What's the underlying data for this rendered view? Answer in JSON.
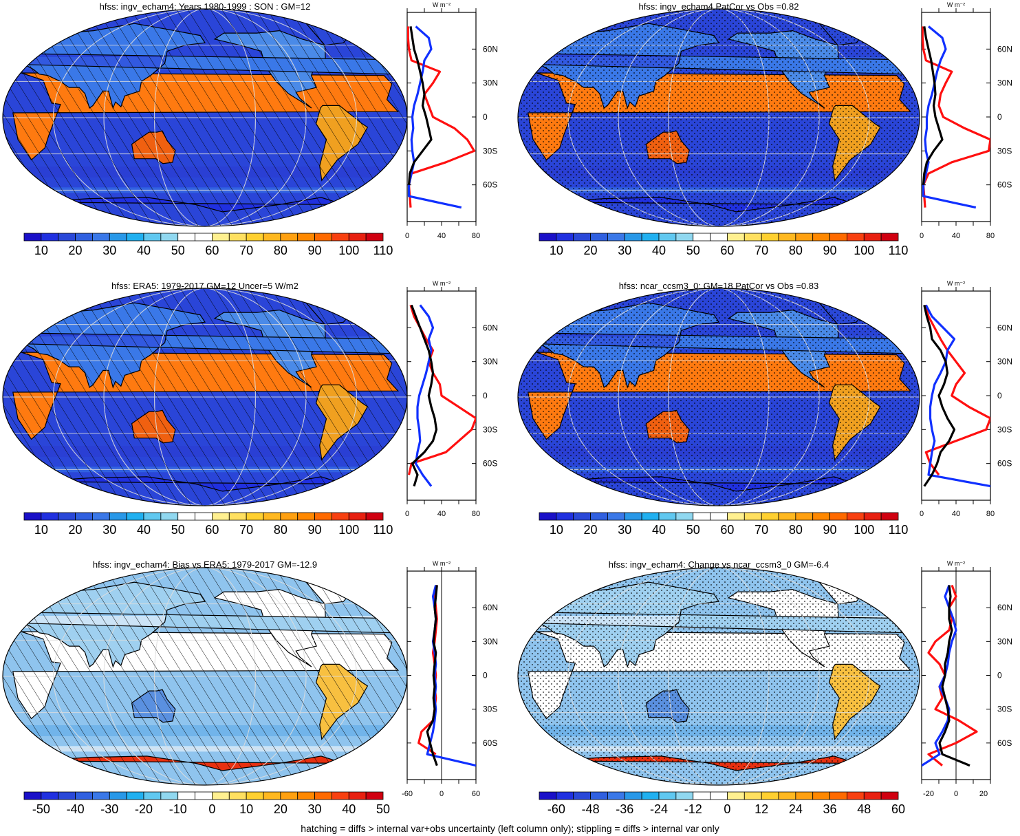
{
  "panels": [
    {
      "title": "hfss: ingv_echam4: Years 1980-1999 : SON : GM=12",
      "colorbar_labels": [
        "10",
        "20",
        "30",
        "40",
        "50",
        "60",
        "70",
        "80",
        "90",
        "100",
        "110"
      ],
      "palette": "full",
      "profile_xticks": [
        "0",
        "40",
        "80"
      ],
      "profile_xrange": [
        0,
        80
      ],
      "profile_unit": "W m⁻²",
      "lat_labels": [
        "60N",
        "30N",
        "0",
        "30S",
        "60S"
      ],
      "overlay": "hatch"
    },
    {
      "title": "hfss: ingv_echam4 PatCor vs Obs =0.82",
      "colorbar_labels": [
        "10",
        "20",
        "30",
        "40",
        "50",
        "60",
        "70",
        "80",
        "90",
        "100",
        "110"
      ],
      "palette": "full",
      "profile_xticks": [
        "0",
        "40",
        "80"
      ],
      "profile_xrange": [
        0,
        80
      ],
      "profile_unit": "W m⁻²",
      "lat_labels": [
        "60N",
        "30N",
        "0",
        "30S",
        "60S"
      ],
      "overlay": "stipple"
    },
    {
      "title": "hfss: ERA5: 1979-2017 GM=12 Uncer=5 W/m2",
      "colorbar_labels": [
        "10",
        "20",
        "30",
        "40",
        "50",
        "60",
        "70",
        "80",
        "90",
        "100",
        "110"
      ],
      "palette": "full",
      "profile_xticks": [
        "0",
        "40",
        "80"
      ],
      "profile_xrange": [
        0,
        80
      ],
      "profile_unit": "W m⁻²",
      "lat_labels": [
        "60N",
        "30N",
        "0",
        "30S",
        "60S"
      ],
      "overlay": "hatch"
    },
    {
      "title": "hfss: ncar_ccsm3_0: GM=18 PatCor vs Obs =0.83",
      "colorbar_labels": [
        "10",
        "20",
        "30",
        "40",
        "50",
        "60",
        "70",
        "80",
        "90",
        "100",
        "110"
      ],
      "palette": "full",
      "profile_xticks": [
        "0",
        "40",
        "80"
      ],
      "profile_xrange": [
        0,
        80
      ],
      "profile_unit": "W m⁻²",
      "lat_labels": [
        "60N",
        "30N",
        "0",
        "30S",
        "60S"
      ],
      "overlay": "stipple"
    },
    {
      "title": "hfss: ingv_echam4: Bias vs ERA5: 1979-2017  GM=-12.9",
      "colorbar_labels": [
        "-50",
        "-40",
        "-30",
        "-20",
        "-10",
        "0",
        "10",
        "20",
        "30",
        "40",
        "50"
      ],
      "palette": "diff",
      "profile_xticks": [
        "-60",
        "0",
        "60"
      ],
      "profile_xrange": [
        -60,
        60
      ],
      "profile_unit": "W m⁻²",
      "lat_labels": [
        "60N",
        "30N",
        "0",
        "30S",
        "60S"
      ],
      "overlay": "hatch"
    },
    {
      "title": "hfss: ingv_echam4: Change vs ncar_ccsm3_0 GM=-6.4",
      "colorbar_labels": [
        "-60",
        "-48",
        "-36",
        "-24",
        "-12",
        "0",
        "12",
        "24",
        "36",
        "48",
        "60"
      ],
      "palette": "diff",
      "profile_xticks": [
        "-20",
        "0",
        "20"
      ],
      "profile_xrange": [
        -25,
        25
      ],
      "profile_unit": "W m⁻²",
      "lat_labels": [
        "60N",
        "30N",
        "0",
        "30S",
        "60S"
      ],
      "overlay": "stipple"
    }
  ],
  "colors": {
    "ocean_mean": "#2a45d8",
    "ocean_diff": "#8fc4ee",
    "red_line": "#ff1010",
    "blue_line": "#1030ff",
    "black_line": "#000000",
    "palette_full": [
      "#1a10c8",
      "#2030e0",
      "#2a48d8",
      "#3060e0",
      "#3a78e8",
      "#2898e8",
      "#20b0f0",
      "#60c8f0",
      "#90d8f0",
      "#ffffff",
      "#ffffff",
      "#fff090",
      "#ffe060",
      "#ffd030",
      "#ffb820",
      "#ffa010",
      "#ff8800",
      "#ff6a00",
      "#f84010",
      "#e82010",
      "#d00010"
    ],
    "palette_diff": [
      "#1a10c8",
      "#2030e0",
      "#2a48d8",
      "#3060e0",
      "#3a78e8",
      "#2898e8",
      "#20b0f0",
      "#60c8f0",
      "#90d8f0",
      "#ffffff",
      "#ffffff",
      "#fff090",
      "#ffe060",
      "#ffd030",
      "#ffb820",
      "#ffa010",
      "#ff8800",
      "#ff6a00",
      "#f84010",
      "#e82010",
      "#d00010"
    ]
  },
  "chart_data": [
    {
      "type": "line",
      "title": "hfss: ingv_echam4: Years 1980-1999 : SON : GM=12",
      "xlabel": "W m-2",
      "xlim": [
        0,
        80
      ],
      "y_axis": "latitude",
      "series": [
        {
          "color": "red",
          "lat": [
            -80,
            -70,
            -60,
            -50,
            -40,
            -30,
            -20,
            -10,
            0,
            10,
            20,
            30,
            40,
            50,
            60,
            70,
            80
          ],
          "values": [
            4,
            3,
            2,
            5,
            45,
            78,
            70,
            55,
            30,
            25,
            20,
            30,
            38,
            5,
            2,
            1,
            1
          ]
        },
        {
          "color": "blue",
          "lat": [
            -80,
            -70,
            -60,
            -50,
            -40,
            -30,
            -20,
            -10,
            0,
            10,
            20,
            30,
            40,
            50,
            60,
            70,
            80
          ],
          "values": [
            63,
            2,
            2,
            5,
            8,
            6,
            5,
            7,
            6,
            8,
            12,
            15,
            18,
            20,
            28,
            25,
            10
          ]
        },
        {
          "color": "black",
          "lat": [
            -60,
            -50,
            -40,
            -30,
            -20,
            -10,
            0,
            10,
            20,
            30,
            40,
            50,
            60,
            70,
            80
          ],
          "values": [
            2,
            3,
            8,
            18,
            28,
            25,
            22,
            18,
            20,
            18,
            15,
            12,
            8,
            6,
            4
          ]
        }
      ]
    },
    {
      "type": "line",
      "title": "hfss: ingv_echam4 PatCor vs Obs =0.82",
      "xlabel": "W m-2",
      "xlim": [
        0,
        80
      ],
      "y_axis": "latitude",
      "series": [
        {
          "color": "red",
          "lat": [
            -80,
            -70,
            -60,
            -50,
            -40,
            -30,
            -20,
            -10,
            0,
            10,
            20,
            30,
            40,
            50,
            60,
            70,
            80
          ],
          "values": [
            4,
            3,
            2,
            8,
            35,
            78,
            80,
            50,
            25,
            20,
            22,
            28,
            35,
            5,
            2,
            1,
            1
          ]
        },
        {
          "color": "blue",
          "lat": [
            -80,
            -70,
            -60,
            -50,
            -40,
            -30,
            -20,
            -10,
            0,
            10,
            20,
            30,
            40,
            50,
            60,
            70,
            80
          ],
          "values": [
            63,
            2,
            2,
            5,
            8,
            5,
            4,
            6,
            6,
            8,
            12,
            15,
            18,
            22,
            28,
            24,
            8
          ]
        },
        {
          "color": "black",
          "lat": [
            -60,
            -50,
            -40,
            -30,
            -20,
            -10,
            0,
            10,
            20,
            30,
            40,
            50,
            60,
            70,
            80
          ],
          "values": [
            2,
            3,
            6,
            14,
            24,
            20,
            16,
            14,
            16,
            15,
            13,
            11,
            8,
            5,
            3
          ]
        }
      ]
    },
    {
      "type": "line",
      "title": "hfss: ERA5: 1979-2017 GM=12 Uncer=5 W/m2",
      "xlabel": "W m-2",
      "xlim": [
        0,
        80
      ],
      "y_axis": "latitude",
      "series": [
        {
          "color": "red",
          "lat": [
            -70,
            -60,
            -50,
            -40,
            -30,
            -20,
            -10,
            0,
            10,
            20,
            30,
            40,
            50,
            60,
            70,
            80
          ],
          "values": [
            2,
            5,
            45,
            60,
            75,
            80,
            60,
            40,
            38,
            30,
            25,
            30,
            22,
            15,
            8,
            4
          ]
        },
        {
          "color": "blue",
          "lat": [
            -80,
            -70,
            -60,
            -50,
            -40,
            -30,
            -20,
            -10,
            0,
            10,
            20,
            30,
            40,
            50,
            60,
            70,
            80
          ],
          "values": [
            28,
            18,
            10,
            12,
            15,
            14,
            12,
            12,
            14,
            18,
            22,
            25,
            28,
            25,
            30,
            25,
            15
          ]
        },
        {
          "color": "black",
          "lat": [
            -80,
            -70,
            -60,
            -50,
            -40,
            -30,
            -20,
            -10,
            0,
            10,
            20,
            30,
            40,
            50,
            60,
            70,
            80
          ],
          "values": [
            8,
            12,
            6,
            20,
            30,
            34,
            32,
            28,
            25,
            28,
            30,
            28,
            25,
            20,
            15,
            10,
            5
          ]
        }
      ]
    },
    {
      "type": "line",
      "title": "hfss: ncar_ccsm3_0: GM=18 PatCor vs Obs =0.83",
      "xlabel": "W m-2",
      "xlim": [
        0,
        80
      ],
      "y_axis": "latitude",
      "series": [
        {
          "color": "red",
          "lat": [
            -70,
            -60,
            -50,
            -40,
            -30,
            -20,
            -10,
            0,
            10,
            20,
            30,
            40,
            50,
            60,
            70,
            80
          ],
          "values": [
            20,
            10,
            5,
            40,
            75,
            80,
            55,
            35,
            40,
            50,
            40,
            30,
            22,
            15,
            8,
            4
          ]
        },
        {
          "color": "blue",
          "lat": [
            -80,
            -70,
            -60,
            -50,
            -40,
            -30,
            -20,
            -10,
            0,
            10,
            20,
            30,
            40,
            50,
            60,
            70,
            80
          ],
          "values": [
            80,
            8,
            10,
            12,
            15,
            12,
            10,
            10,
            12,
            15,
            22,
            28,
            30,
            38,
            25,
            12,
            5
          ]
        },
        {
          "color": "black",
          "lat": [
            -80,
            -70,
            -60,
            -50,
            -40,
            -30,
            -20,
            -10,
            0,
            10,
            20,
            30,
            40,
            50,
            60,
            70,
            80
          ],
          "values": [
            3,
            12,
            18,
            22,
            32,
            38,
            30,
            24,
            20,
            26,
            30,
            28,
            22,
            12,
            10,
            6,
            3
          ]
        }
      ]
    },
    {
      "type": "line",
      "title": "hfss: ingv_echam4: Bias vs ERA5: 1979-2017  GM=-12.9",
      "xlabel": "W m-2",
      "xlim": [
        -60,
        60
      ],
      "y_axis": "latitude",
      "series": [
        {
          "color": "red",
          "lat": [
            -70,
            -60,
            -50,
            -40,
            -30,
            -20,
            -10,
            0,
            10,
            20,
            30,
            40,
            50,
            60,
            70,
            80
          ],
          "values": [
            -10,
            -40,
            -35,
            -15,
            -12,
            -10,
            -12,
            -10,
            -12,
            -15,
            -12,
            -10,
            -8,
            -10,
            -12,
            -8
          ]
        },
        {
          "color": "blue",
          "lat": [
            -80,
            -70,
            -60,
            -50,
            -40,
            -30,
            -20,
            -10,
            0,
            10,
            20,
            30,
            40,
            50,
            60,
            70,
            80
          ],
          "values": [
            60,
            -25,
            -20,
            -15,
            -12,
            -10,
            -12,
            -10,
            -12,
            -10,
            -12,
            -15,
            -12,
            -10,
            -12,
            -15,
            -10
          ]
        },
        {
          "color": "black",
          "lat": [
            -80,
            -70,
            -60,
            -50,
            -40,
            -30,
            -20,
            -10,
            0,
            10,
            20,
            30,
            40,
            50,
            60,
            70,
            80
          ],
          "values": [
            -8,
            -15,
            -20,
            -25,
            -15,
            -12,
            -14,
            -12,
            -14,
            -12,
            -10,
            -14,
            -12,
            -10,
            -12,
            -10,
            -8
          ]
        }
      ]
    },
    {
      "type": "line",
      "title": "hfss: ingv_echam4: Change vs ncar_ccsm3_0 GM=-6.4",
      "xlabel": "W m-2",
      "xlim": [
        -25,
        25
      ],
      "y_axis": "latitude",
      "series": [
        {
          "color": "red",
          "lat": [
            -80,
            -70,
            -60,
            -50,
            -40,
            -30,
            -20,
            -10,
            0,
            10,
            20,
            30,
            40,
            50,
            60,
            70,
            80
          ],
          "values": [
            -10,
            -20,
            0,
            15,
            2,
            -15,
            -10,
            -12,
            -8,
            -12,
            -20,
            -15,
            -5,
            -3,
            -5,
            0,
            -3
          ]
        },
        {
          "color": "blue",
          "lat": [
            -80,
            -70,
            -60,
            -50,
            -40,
            -30,
            -20,
            -10,
            0,
            10,
            20,
            30,
            40,
            50,
            60,
            70,
            80
          ],
          "values": [
            -25,
            -12,
            -15,
            -10,
            -6,
            -5,
            -8,
            -12,
            -8,
            -6,
            -5,
            -3,
            0,
            -2,
            -5,
            -8,
            -5
          ]
        },
        {
          "color": "black",
          "lat": [
            -80,
            -70,
            -60,
            -50,
            -40,
            -30,
            -20,
            -10,
            0,
            10,
            20,
            30,
            40,
            50,
            60,
            70,
            80
          ],
          "values": [
            10,
            -10,
            -12,
            -8,
            -5,
            -6,
            -8,
            -10,
            -8,
            -8,
            -6,
            -5,
            -3,
            -5,
            -5,
            -4,
            -5
          ]
        }
      ]
    }
  ],
  "footer": "hatching = diffs > internal var+obs uncertainty (left column only); stippling = diffs > internal var only"
}
